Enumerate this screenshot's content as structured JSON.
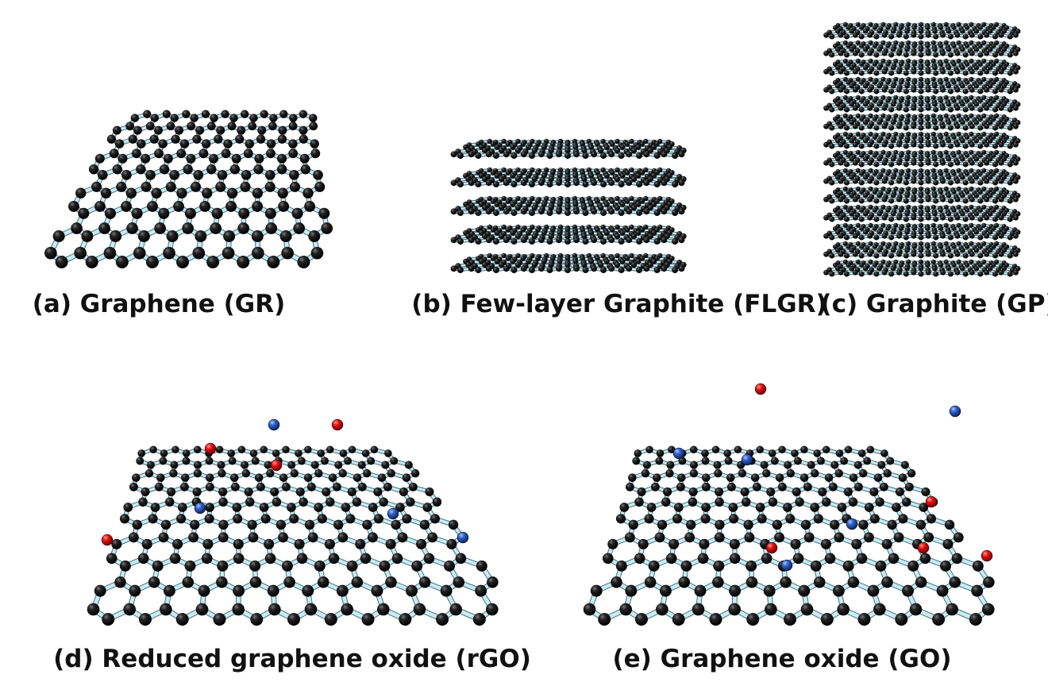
{
  "panels": [
    {
      "label": "(a) Graphene (GR)"
    },
    {
      "label": "(b) Few-layer Graphite (FLGR)"
    },
    {
      "label": "(c) Graphite (GP)"
    },
    {
      "label": "(d) Reduced graphene oxide (rGO)"
    },
    {
      "label": "(e) Graphene oxide (GO)"
    }
  ]
}
